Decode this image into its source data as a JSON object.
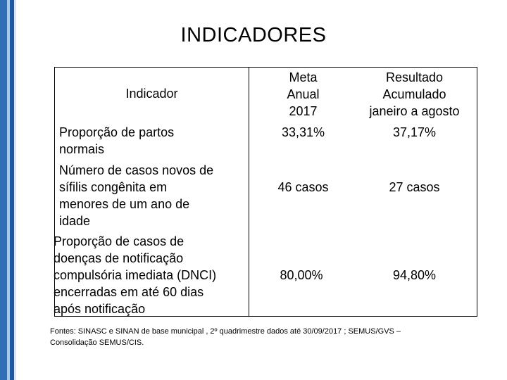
{
  "title": "INDICADORES",
  "table": {
    "headers": {
      "indicador": "Indicador",
      "meta": [
        "Meta",
        "Anual",
        "2017"
      ],
      "resultado": [
        "Resultado",
        "Acumulado",
        "janeiro a agosto"
      ]
    },
    "rows": [
      {
        "indicador": [
          "Proporção de partos",
          "normais"
        ],
        "meta": "33,31%",
        "resultado": "37,17%"
      },
      {
        "indicador": [
          "Número de casos novos de",
          "sífilis congênita em",
          "menores de um ano de",
          "idade"
        ],
        "meta": "46 casos",
        "resultado": "27 casos"
      },
      {
        "indicador": [
          "Proporção de casos de",
          "doenças de notificação",
          "compulsória imediata (DNCI)",
          "encerradas em até 60 dias",
          "após notificação"
        ],
        "meta": "80,00%",
        "resultado": "94,80%"
      }
    ]
  },
  "footnote": [
    "Fontes: SINASC e SINAN de base municipal , 2º quadrimestre dados até 30/09/2017 ; SEMUS/GVS –",
    "Consolidação SEMUS/CIS."
  ],
  "colors": {
    "stripe_dark": "#1f5aa0",
    "stripe_mid": "#2e6fb6",
    "stripe_light": "#a9c8e8"
  }
}
